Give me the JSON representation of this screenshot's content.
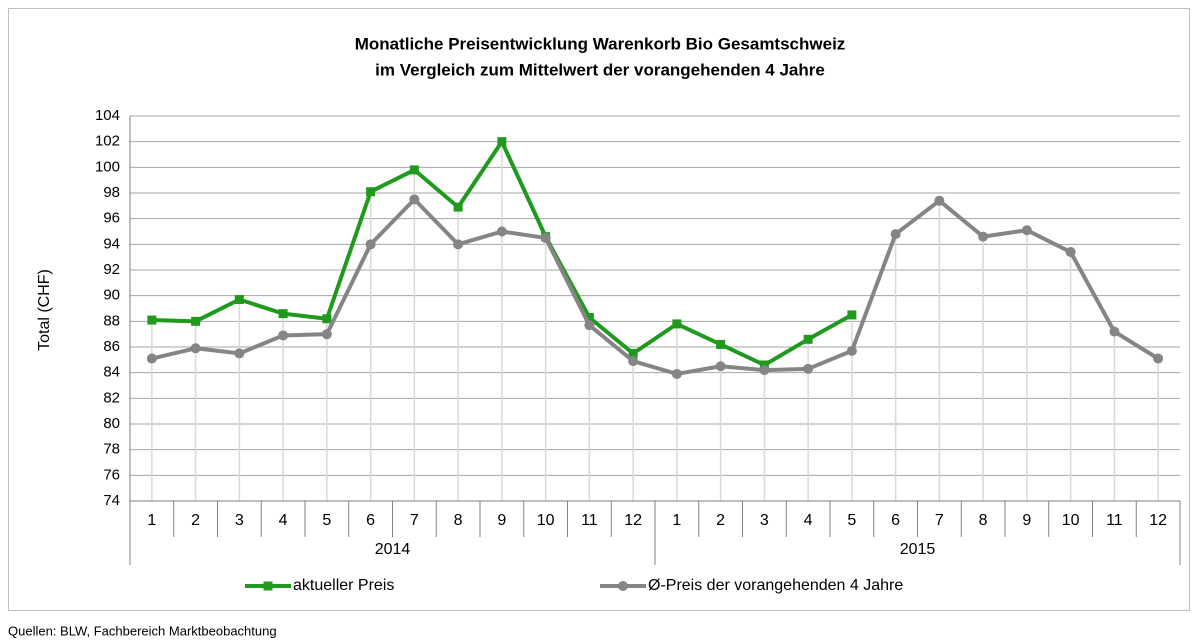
{
  "chart_data": {
    "type": "line",
    "title": "Monatliche Preisentwicklung Warenkorb Bio Gesamtschweiz",
    "subtitle": "im Vergleich zum Mittelwert der vorangehenden 4 Jahre",
    "y_label": "Total (CHF)",
    "source": "Quellen: BLW, Fachbereich Marktbeobachtung",
    "categories": [
      "1",
      "2",
      "3",
      "4",
      "5",
      "6",
      "7",
      "8",
      "9",
      "10",
      "11",
      "12",
      "1",
      "2",
      "3",
      "4",
      "5",
      "6",
      "7",
      "8",
      "9",
      "10",
      "11",
      "12"
    ],
    "category_groups": [
      "2014",
      "2015"
    ],
    "series": [
      {
        "name": "aktueller Preis",
        "color": "#1f9a1f",
        "marker": "square",
        "values": [
          88.1,
          88.0,
          89.7,
          88.6,
          88.2,
          98.1,
          99.8,
          96.9,
          102.0,
          94.6,
          88.3,
          85.5,
          87.8,
          86.2,
          84.6,
          86.6,
          88.5,
          null,
          null,
          null,
          null,
          null,
          null,
          null
        ]
      },
      {
        "name": "Ø-Preis der vorangehenden 4 Jahre",
        "color": "#858585",
        "marker": "circle",
        "values": [
          85.1,
          85.9,
          85.5,
          86.9,
          87.0,
          94.0,
          97.5,
          94.0,
          95.0,
          94.5,
          87.7,
          84.9,
          83.9,
          84.5,
          84.2,
          84.3,
          85.7,
          94.8,
          97.4,
          94.6,
          95.1,
          93.4,
          87.2,
          85.1
        ]
      }
    ],
    "ylim": [
      74,
      104
    ],
    "yticks": [
      74,
      76,
      78,
      80,
      82,
      84,
      86,
      88,
      90,
      92,
      94,
      96,
      98,
      100,
      102,
      104
    ],
    "grid": true,
    "legend": "bottom"
  }
}
